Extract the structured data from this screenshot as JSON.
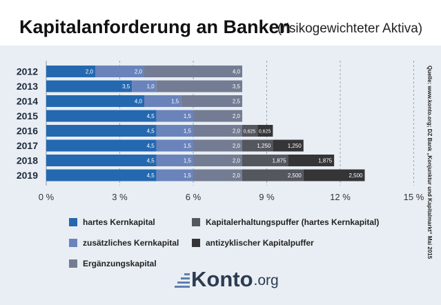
{
  "header": {
    "title": "Kapitalanforderung an Banken",
    "subtitle": "(risikogewichteter Aktiva)"
  },
  "source_note": "Quelle: www.konto.org; DZ Bank „Konjunktur und Kapitalmarkt“ Mai 2015",
  "brand": {
    "name": "Konto",
    "tld": ".org"
  },
  "chart_data": {
    "type": "bar",
    "orientation": "horizontal",
    "stacked": true,
    "categories": [
      "2012",
      "2013",
      "2014",
      "2015",
      "2016",
      "2017",
      "2018",
      "2019"
    ],
    "xlim": [
      0,
      15
    ],
    "xticks": [
      0,
      3,
      6,
      9,
      12,
      15
    ],
    "xtick_labels": [
      "0 %",
      "3 %",
      "6 %",
      "9 %",
      "12 %",
      "15 %"
    ],
    "grid": "vertical dashed",
    "series": [
      {
        "name": "hartes Kernkapital",
        "color": "#2468b0",
        "values": [
          2.0,
          3.5,
          4.0,
          4.5,
          4.5,
          4.5,
          4.5,
          4.5
        ],
        "labels": [
          "2,0",
          "3,5",
          "4,0",
          "4,5",
          "4,5",
          "4,5",
          "4,5",
          "4,5"
        ]
      },
      {
        "name": "zusätzliches Kernkapital",
        "color": "#6a83bb",
        "values": [
          2.0,
          1.0,
          1.5,
          1.5,
          1.5,
          1.5,
          1.5,
          1.5
        ],
        "labels": [
          "2,0",
          "1,0",
          "1,5",
          "1,5",
          "1,5",
          "1,5",
          "1,5",
          "1,5"
        ]
      },
      {
        "name": "Ergänzungskapital",
        "color": "#737c92",
        "values": [
          4.0,
          3.5,
          2.5,
          2.0,
          2.0,
          2.0,
          2.0,
          2.0
        ],
        "labels": [
          "4,0",
          "3,5",
          "2,5",
          "2,0",
          "2,0",
          "2,0",
          "2,0",
          "2,0"
        ]
      },
      {
        "name": "Kapitalerhaltungspuffer (hartes Kernkapital)",
        "color": "#55575f",
        "values": [
          0,
          0,
          0,
          0,
          0.625,
          1.25,
          1.875,
          2.5
        ],
        "labels": [
          "",
          "",
          "",
          "",
          "0,625",
          "1,250",
          "1,875",
          "2,500"
        ]
      },
      {
        "name": "antizyklischer Kapitalpuffer",
        "color": "#353538",
        "values": [
          0,
          0,
          0,
          0,
          0.625,
          1.25,
          1.875,
          2.5
        ],
        "labels": [
          "",
          "",
          "",
          "",
          "0,625",
          "1,250",
          "1,875",
          "2,500"
        ]
      }
    ]
  }
}
